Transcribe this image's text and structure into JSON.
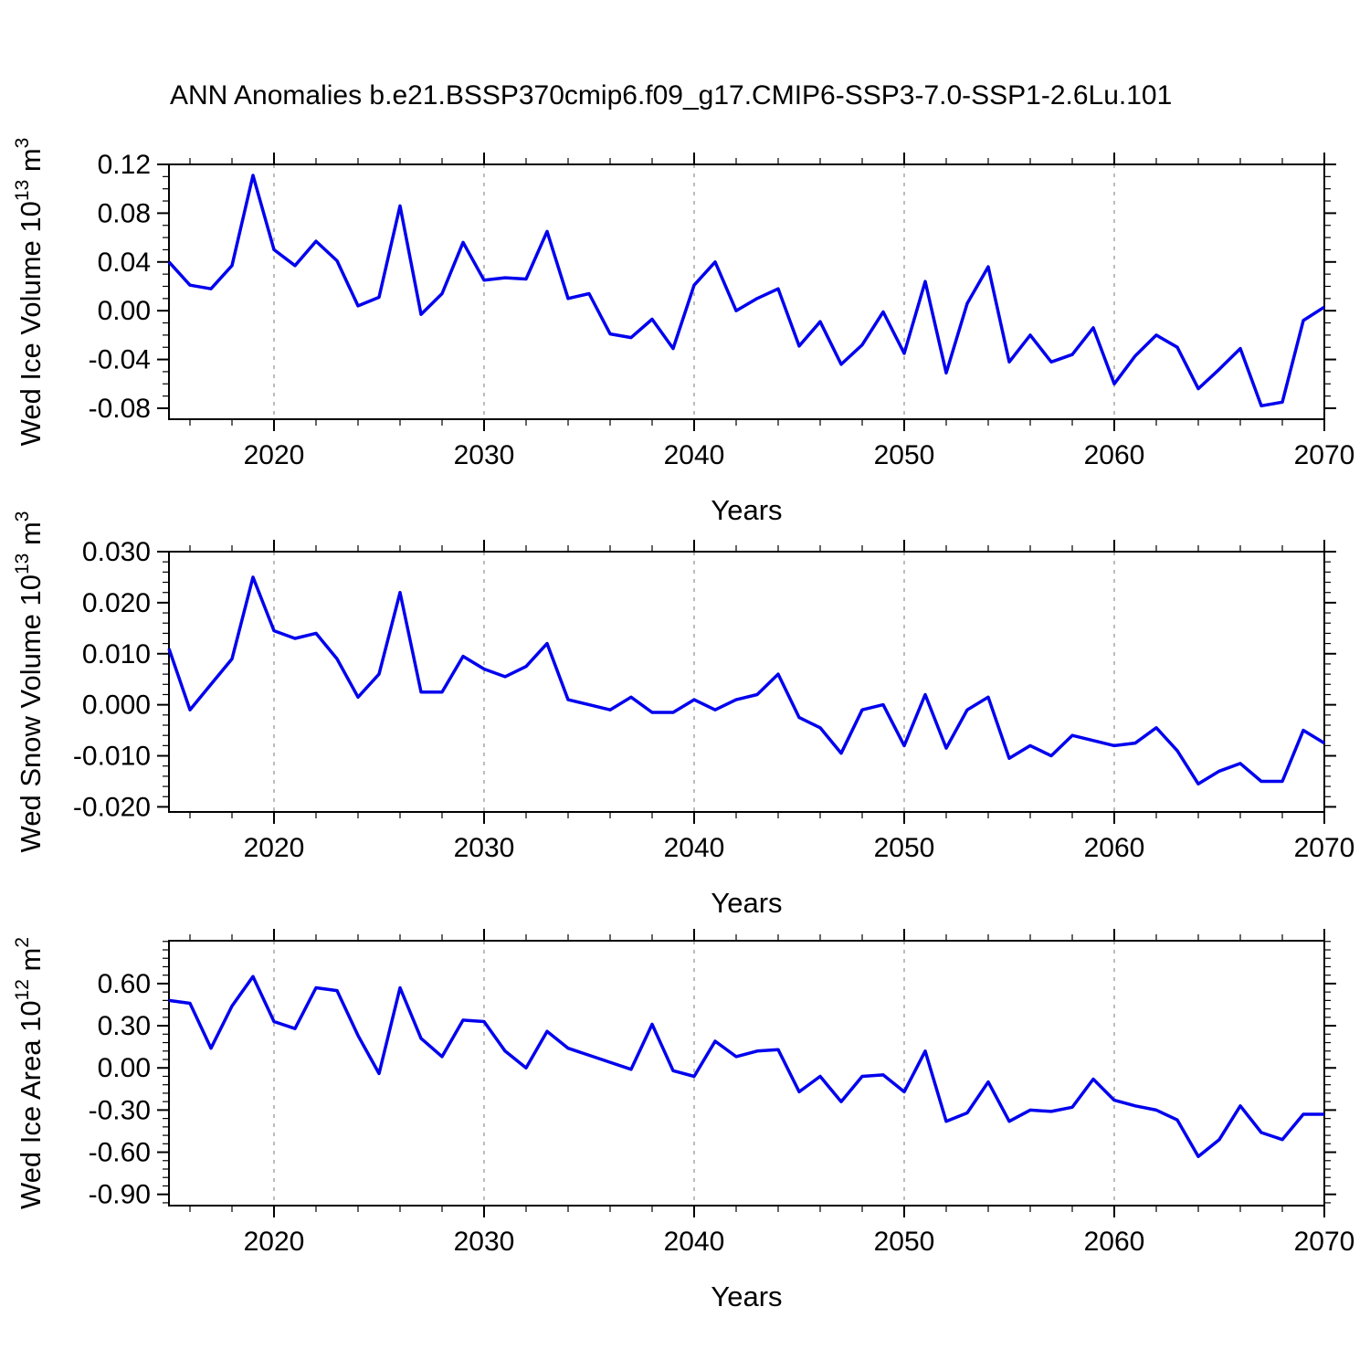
{
  "title": "ANN Anomalies b.e21.BSSP370cmip6.f09_g17.CMIP6-SSP3-7.0-SSP1-2.6Lu.101",
  "colors": {
    "series_line": "#0000EE",
    "gridline": "#A0A0A0",
    "axis": "#000000",
    "background": "#FFFFFF",
    "text": "#000000"
  },
  "chart_data": {
    "type": "line",
    "grid": "vertical-dashed",
    "legend": "none",
    "x": [
      2015,
      2016,
      2017,
      2018,
      2019,
      2020,
      2021,
      2022,
      2023,
      2024,
      2025,
      2026,
      2027,
      2028,
      2029,
      2030,
      2031,
      2032,
      2033,
      2034,
      2035,
      2036,
      2037,
      2038,
      2039,
      2040,
      2041,
      2042,
      2043,
      2044,
      2045,
      2046,
      2047,
      2048,
      2049,
      2050,
      2051,
      2052,
      2053,
      2054,
      2055,
      2056,
      2057,
      2058,
      2059,
      2060,
      2061,
      2062,
      2063,
      2064,
      2065,
      2066,
      2067,
      2068,
      2069,
      2070
    ],
    "x_axis": {
      "label": "Years",
      "min": 2015,
      "max": 2070,
      "major_ticks": [
        2020,
        2030,
        2040,
        2050,
        2060,
        2070
      ],
      "major_labels": [
        "2020",
        "2030",
        "2040",
        "2050",
        "2060",
        "2070"
      ],
      "minor_step": 2,
      "gridlines": [
        2020,
        2030,
        2040,
        2050,
        2060
      ]
    },
    "panels": [
      {
        "name": "wed-ice-volume",
        "y_label_segments": [
          {
            "t": "Wed Ice Volume 10",
            "sup": false
          },
          {
            "t": "13",
            "sup": true
          },
          {
            "t": " m",
            "sup": false
          },
          {
            "t": "3",
            "sup": true
          }
        ],
        "y_axis": {
          "min": -0.089,
          "max": 0.12,
          "major_ticks": [
            {
              "v": 0.12,
              "label": "0.12"
            },
            {
              "v": 0.08,
              "label": "0.08"
            },
            {
              "v": 0.04,
              "label": "0.04"
            },
            {
              "v": 0.0,
              "label": "0.00"
            },
            {
              "v": -0.04,
              "label": "-0.04"
            },
            {
              "v": -0.08,
              "label": "-0.08"
            }
          ],
          "minor_step": 0.01
        },
        "values": [
          0.04,
          0.021,
          0.018,
          0.037,
          0.111,
          0.05,
          0.037,
          0.057,
          0.041,
          0.004,
          0.011,
          0.086,
          -0.003,
          0.014,
          0.056,
          0.025,
          0.027,
          0.026,
          0.065,
          0.01,
          0.014,
          -0.019,
          -0.022,
          -0.007,
          -0.031,
          0.021,
          0.04,
          0.0,
          0.01,
          0.018,
          -0.029,
          -0.009,
          -0.044,
          -0.028,
          -0.001,
          -0.035,
          0.024,
          -0.051,
          0.006,
          0.036,
          -0.042,
          -0.02,
          -0.042,
          -0.036,
          -0.014,
          -0.06,
          -0.037,
          -0.02,
          -0.03,
          -0.064,
          -0.048,
          -0.031,
          -0.078,
          -0.075,
          -0.008,
          0.003
        ]
      },
      {
        "name": "wed-snow-volume",
        "y_label_segments": [
          {
            "t": "Wed Snow Volume 10",
            "sup": false
          },
          {
            "t": "13",
            "sup": true
          },
          {
            "t": " m",
            "sup": false
          },
          {
            "t": "3",
            "sup": true
          }
        ],
        "y_axis": {
          "min": -0.021,
          "max": 0.03,
          "major_ticks": [
            {
              "v": 0.03,
              "label": "0.030"
            },
            {
              "v": 0.02,
              "label": "0.020"
            },
            {
              "v": 0.01,
              "label": "0.010"
            },
            {
              "v": 0.0,
              "label": "0.000"
            },
            {
              "v": -0.01,
              "label": "-0.010"
            },
            {
              "v": -0.02,
              "label": "-0.020"
            }
          ],
          "minor_step": 0.002
        },
        "values": [
          0.011,
          -0.001,
          0.004,
          0.009,
          0.025,
          0.0145,
          0.013,
          0.014,
          0.009,
          0.0015,
          0.006,
          0.022,
          0.0025,
          0.0025,
          0.0095,
          0.007,
          0.0055,
          0.0075,
          0.012,
          0.001,
          0.0,
          -0.001,
          0.0015,
          -0.0015,
          -0.0015,
          0.001,
          -0.001,
          0.001,
          0.002,
          0.006,
          -0.0025,
          -0.0045,
          -0.0095,
          -0.001,
          0.0,
          -0.008,
          0.002,
          -0.0085,
          -0.001,
          0.0015,
          -0.0105,
          -0.008,
          -0.01,
          -0.006,
          -0.007,
          -0.008,
          -0.0075,
          -0.0045,
          -0.009,
          -0.0155,
          -0.013,
          -0.0115,
          -0.015,
          -0.015,
          -0.005,
          -0.0075
        ]
      },
      {
        "name": "wed-ice-area",
        "y_label_segments": [
          {
            "t": "Wed Ice Area 10",
            "sup": false
          },
          {
            "t": "12",
            "sup": true
          },
          {
            "t": " m",
            "sup": false
          },
          {
            "t": "2",
            "sup": true
          }
        ],
        "y_axis": {
          "min": -0.98,
          "max": 0.905,
          "major_ticks": [
            {
              "v": 0.6,
              "label": "0.60"
            },
            {
              "v": 0.3,
              "label": "0.30"
            },
            {
              "v": 0.0,
              "label": "0.00"
            },
            {
              "v": -0.3,
              "label": "-0.30"
            },
            {
              "v": -0.6,
              "label": "-0.60"
            },
            {
              "v": -0.9,
              "label": "-0.90"
            }
          ],
          "minor_step": 0.06
        },
        "values": [
          0.48,
          0.46,
          0.14,
          0.44,
          0.65,
          0.33,
          0.28,
          0.57,
          0.55,
          0.23,
          -0.04,
          0.57,
          0.21,
          0.08,
          0.34,
          0.33,
          0.12,
          0.0,
          0.26,
          0.14,
          0.09,
          0.04,
          -0.01,
          0.31,
          -0.02,
          -0.06,
          0.19,
          0.08,
          0.12,
          0.13,
          -0.17,
          -0.06,
          -0.24,
          -0.06,
          -0.05,
          -0.17,
          0.12,
          -0.38,
          -0.32,
          -0.1,
          -0.38,
          -0.3,
          -0.31,
          -0.28,
          -0.08,
          -0.23,
          -0.27,
          -0.3,
          -0.37,
          -0.63,
          -0.51,
          -0.27,
          -0.46,
          -0.51,
          -0.33,
          -0.33
        ]
      }
    ]
  }
}
